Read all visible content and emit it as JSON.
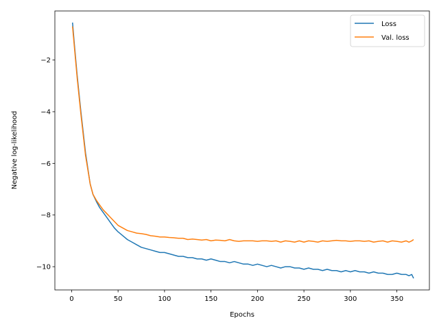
{
  "chart_data": {
    "type": "line",
    "title": "",
    "xlabel": "Epochs",
    "ylabel": "Negative log-likelihood",
    "xlim": [
      -18,
      385
    ],
    "ylim": [
      -10.9,
      -0.1
    ],
    "xticks": [
      0,
      50,
      100,
      150,
      200,
      250,
      300,
      350
    ],
    "yticks": [
      -2,
      -4,
      -6,
      -8,
      -10
    ],
    "grid": false,
    "legend_position": "top-right",
    "series": [
      {
        "name": "Loss",
        "color": "#1f77b4",
        "x": [
          1,
          3,
          6,
          10,
          15,
          20,
          23,
          27,
          30,
          34,
          38,
          42,
          46,
          50,
          55,
          60,
          65,
          70,
          75,
          80,
          85,
          90,
          95,
          100,
          105,
          110,
          115,
          120,
          125,
          130,
          135,
          140,
          145,
          150,
          155,
          160,
          165,
          170,
          175,
          180,
          185,
          190,
          195,
          200,
          205,
          210,
          215,
          220,
          225,
          230,
          235,
          240,
          245,
          250,
          255,
          260,
          265,
          270,
          275,
          280,
          285,
          290,
          295,
          300,
          305,
          310,
          315,
          320,
          325,
          330,
          335,
          340,
          345,
          350,
          355,
          360,
          363,
          366,
          368
        ],
        "y": [
          -0.55,
          -1.4,
          -2.6,
          -4.0,
          -5.6,
          -6.8,
          -7.2,
          -7.5,
          -7.7,
          -7.9,
          -8.1,
          -8.3,
          -8.5,
          -8.65,
          -8.8,
          -8.95,
          -9.05,
          -9.15,
          -9.25,
          -9.3,
          -9.35,
          -9.4,
          -9.45,
          -9.45,
          -9.5,
          -9.55,
          -9.6,
          -9.6,
          -9.65,
          -9.65,
          -9.7,
          -9.7,
          -9.75,
          -9.7,
          -9.75,
          -9.8,
          -9.8,
          -9.85,
          -9.8,
          -9.85,
          -9.9,
          -9.9,
          -9.95,
          -9.9,
          -9.95,
          -10.0,
          -9.95,
          -10.0,
          -10.05,
          -10.0,
          -10.0,
          -10.05,
          -10.05,
          -10.1,
          -10.05,
          -10.1,
          -10.1,
          -10.15,
          -10.1,
          -10.15,
          -10.15,
          -10.2,
          -10.15,
          -10.2,
          -10.15,
          -10.2,
          -10.2,
          -10.25,
          -10.2,
          -10.25,
          -10.25,
          -10.3,
          -10.3,
          -10.25,
          -10.3,
          -10.3,
          -10.35,
          -10.3,
          -10.45
        ]
      },
      {
        "name": "Val. loss",
        "color": "#ff7f0e",
        "x": [
          1,
          3,
          6,
          10,
          15,
          20,
          23,
          27,
          30,
          34,
          38,
          42,
          46,
          50,
          55,
          60,
          65,
          70,
          75,
          80,
          85,
          90,
          95,
          100,
          105,
          110,
          115,
          120,
          125,
          130,
          135,
          140,
          145,
          150,
          155,
          160,
          165,
          170,
          175,
          180,
          185,
          190,
          195,
          200,
          205,
          210,
          215,
          220,
          225,
          230,
          235,
          240,
          245,
          250,
          255,
          260,
          265,
          270,
          275,
          280,
          285,
          290,
          295,
          300,
          305,
          310,
          315,
          320,
          325,
          330,
          335,
          340,
          345,
          350,
          355,
          360,
          363,
          366,
          368
        ],
        "y": [
          -0.7,
          -1.5,
          -2.7,
          -4.1,
          -5.7,
          -6.8,
          -7.2,
          -7.45,
          -7.6,
          -7.8,
          -7.95,
          -8.1,
          -8.25,
          -8.4,
          -8.5,
          -8.6,
          -8.65,
          -8.7,
          -8.72,
          -8.75,
          -8.8,
          -8.82,
          -8.85,
          -8.85,
          -8.87,
          -8.88,
          -8.9,
          -8.9,
          -8.95,
          -8.93,
          -8.95,
          -8.97,
          -8.95,
          -9.0,
          -8.97,
          -8.98,
          -9.0,
          -8.95,
          -9.0,
          -9.02,
          -9.0,
          -9.0,
          -9.0,
          -9.02,
          -9.0,
          -9.0,
          -9.02,
          -9.0,
          -9.05,
          -9.0,
          -9.02,
          -9.05,
          -9.0,
          -9.05,
          -9.0,
          -9.02,
          -9.05,
          -9.0,
          -9.02,
          -9.0,
          -8.98,
          -9.0,
          -9.0,
          -9.02,
          -9.0,
          -9.0,
          -9.02,
          -9.0,
          -9.05,
          -9.02,
          -9.0,
          -9.05,
          -9.0,
          -9.02,
          -9.05,
          -9.0,
          -9.05,
          -9.0,
          -8.95
        ]
      }
    ]
  }
}
